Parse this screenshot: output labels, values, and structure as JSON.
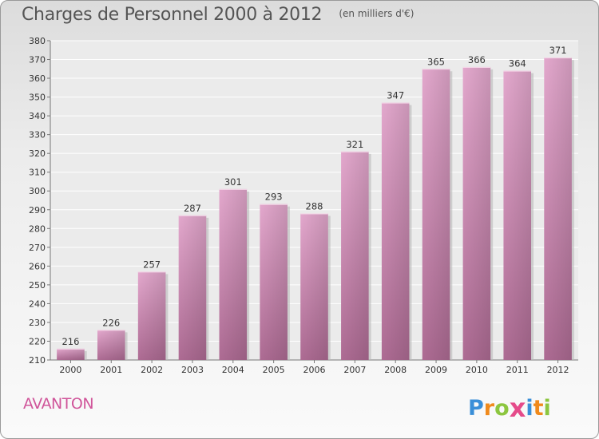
{
  "chart_data": {
    "type": "bar",
    "title": "Charges de Personnel 2000 à 2012",
    "subtitle": "(en milliers d'€)",
    "categories": [
      "2000",
      "2001",
      "2002",
      "2003",
      "2004",
      "2005",
      "2006",
      "2007",
      "2008",
      "2009",
      "2010",
      "2011",
      "2012"
    ],
    "values": [
      216,
      226,
      257,
      287,
      301,
      293,
      288,
      321,
      347,
      365,
      366,
      364,
      371
    ],
    "ylim": [
      210,
      380
    ],
    "ytick_step": 10,
    "xlabel": "",
    "ylabel": "",
    "grid": true,
    "bar_color": "#d98cb8"
  },
  "footer": {
    "city": "AVANTON",
    "logo_letters": [
      "P",
      "r",
      "o",
      "x",
      "i",
      "t",
      "i"
    ],
    "logo_colors": [
      "#3a8fd8",
      "#f08a1c",
      "#8cc63f",
      "#e54b8a",
      "#3a8fd8",
      "#f08a1c",
      "#8cc63f"
    ]
  }
}
